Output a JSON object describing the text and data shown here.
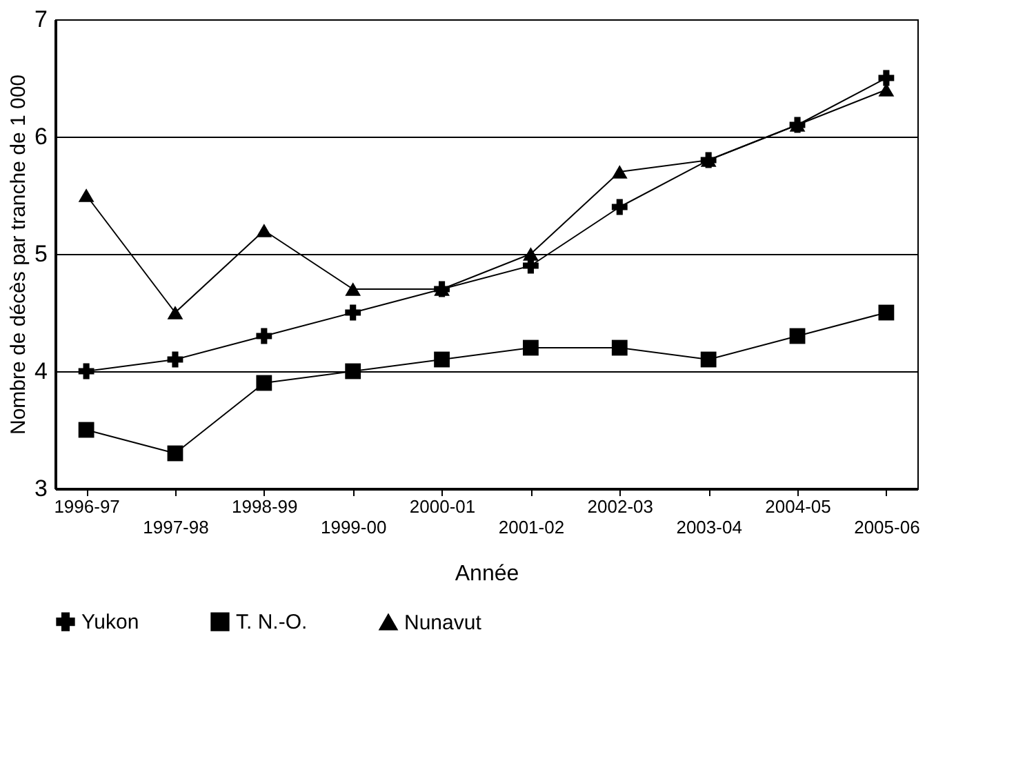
{
  "chart_data": {
    "type": "line",
    "xlabel": "Année",
    "ylabel": "Nombre de décès par tranche de 1 000",
    "categories": [
      "1996-97",
      "1997-98",
      "1998-99",
      "1999-00",
      "2000-01",
      "2001-02",
      "2002-03",
      "2003-04",
      "2004-05",
      "2005-06"
    ],
    "series": [
      {
        "name": "Yukon",
        "color": "#000000",
        "marker": "cross",
        "values": [
          4.0,
          4.1,
          4.3,
          4.5,
          4.7,
          4.9,
          5.4,
          5.8,
          6.1,
          6.5
        ]
      },
      {
        "name": "T. N.-O.",
        "color": "#000000",
        "marker": "square",
        "values": [
          3.5,
          3.3,
          3.9,
          4.0,
          4.1,
          4.2,
          4.2,
          4.1,
          4.3,
          4.5
        ]
      },
      {
        "name": "Nunavut",
        "color": "#000000",
        "marker": "triangle",
        "values": [
          5.5,
          4.5,
          5.2,
          4.7,
          4.7,
          5.0,
          5.7,
          5.8,
          6.1,
          6.4
        ]
      }
    ],
    "ylim": [
      3,
      7
    ],
    "yticks": [
      3,
      4,
      5,
      6,
      7
    ],
    "grid": "y",
    "legend": "bottom",
    "line_style": "solid"
  }
}
